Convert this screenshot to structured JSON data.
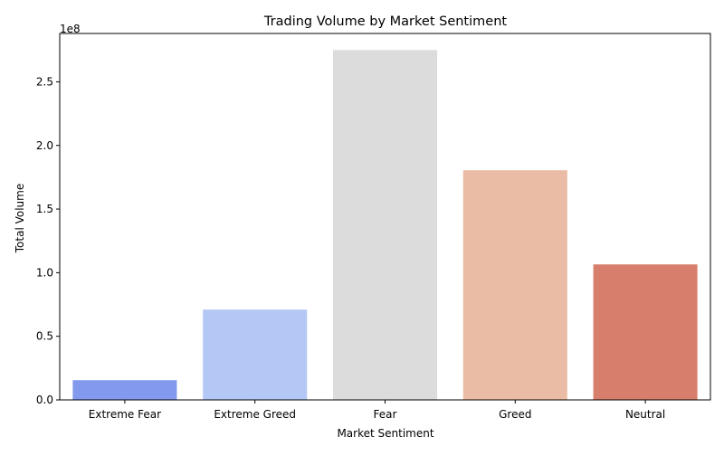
{
  "chart_data": {
    "type": "bar",
    "title": "Trading Volume by Market Sentiment",
    "xlabel": "Market Sentiment",
    "ylabel": "Total Volume",
    "offset_label": "1e8",
    "scale_factor": 100000000,
    "categories": [
      "Extreme Fear",
      "Extreme Greed",
      "Fear",
      "Greed",
      "Neutral"
    ],
    "values": [
      15500000,
      71000000,
      275000000,
      180500000,
      106500000
    ],
    "colors": [
      "#8399ed",
      "#b4c8f5",
      "#dcdcdc",
      "#ebbca5",
      "#d77f6c"
    ],
    "ylim": [
      0,
      288000000
    ],
    "yticks": [
      0,
      50000000,
      100000000,
      150000000,
      200000000,
      250000000
    ],
    "ytick_labels": [
      "0.0",
      "0.5",
      "1.0",
      "1.5",
      "2.0",
      "2.5"
    ],
    "grid": false,
    "legend": "none"
  }
}
